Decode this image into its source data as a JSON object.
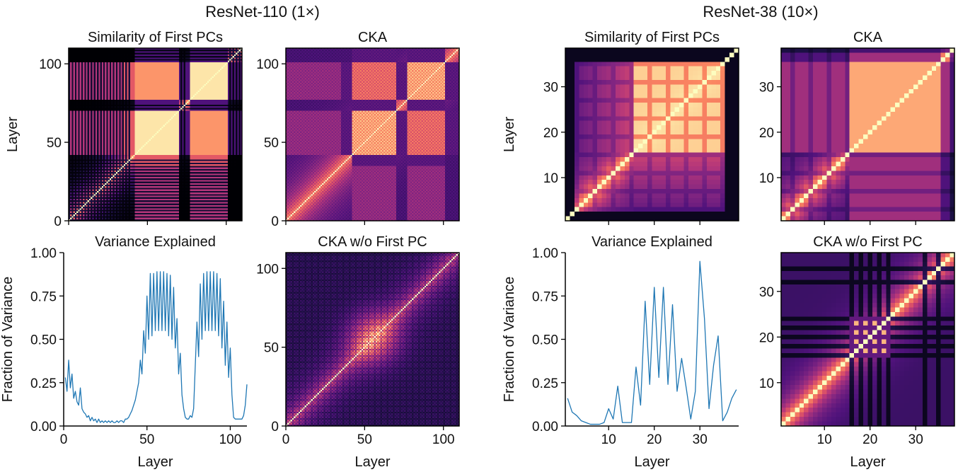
{
  "figure": {
    "group_titles": [
      "ResNet-110 (1×)",
      "ResNet-38 (10×)"
    ]
  },
  "colormap": {
    "name": "magma-like",
    "stops": [
      "#000004",
      "#1c1044",
      "#4f127b",
      "#812581",
      "#b5367a",
      "#e55964",
      "#fb8761",
      "#fec287",
      "#fcfdbf"
    ]
  },
  "line_color": "#1f77b4",
  "chart_data": [
    {
      "id": "r110-first-pc",
      "type": "heatmap",
      "title": "Similarity of First PCs",
      "xlabel": "",
      "ylabel": "Layer",
      "n": 110,
      "xlim": [
        0,
        110
      ],
      "ylim": [
        0,
        110
      ],
      "xticks": [
        0,
        50,
        100
      ],
      "yticks": [
        0,
        50,
        100
      ],
      "show_xticklabels": false,
      "model": "first_pc_110"
    },
    {
      "id": "r110-cka",
      "type": "heatmap",
      "title": "CKA",
      "xlabel": "",
      "ylabel": "",
      "n": 110,
      "xlim": [
        0,
        110
      ],
      "ylim": [
        0,
        110
      ],
      "xticks": [
        0,
        50,
        100
      ],
      "yticks": [
        0,
        50,
        100
      ],
      "show_xticklabels": false,
      "model": "cka_110"
    },
    {
      "id": "r38-first-pc",
      "type": "heatmap",
      "title": "Similarity of First PCs",
      "xlabel": "",
      "ylabel": "Layer",
      "n": 38,
      "xlim": [
        0.5,
        38.5
      ],
      "ylim": [
        0.5,
        38.5
      ],
      "xticks": [
        10,
        20,
        30
      ],
      "yticks": [
        10,
        20,
        30
      ],
      "show_xticklabels": false,
      "model": "first_pc_38"
    },
    {
      "id": "r38-cka",
      "type": "heatmap",
      "title": "CKA",
      "xlabel": "",
      "ylabel": "",
      "n": 38,
      "xlim": [
        0.5,
        38.5
      ],
      "ylim": [
        0.5,
        38.5
      ],
      "xticks": [
        10,
        20,
        30
      ],
      "yticks": [
        10,
        20,
        30
      ],
      "show_xticklabels": false,
      "model": "cka_38"
    },
    {
      "id": "r110-variance",
      "type": "line",
      "title": "Variance Explained",
      "xlabel": "Layer",
      "ylabel": "Fraction of Variance",
      "xlim": [
        0,
        110
      ],
      "ylim": [
        0,
        1.0
      ],
      "xticks": [
        0,
        50,
        100
      ],
      "yticks": [
        0.0,
        0.25,
        0.5,
        0.75,
        1.0
      ],
      "ytick_labels": [
        "0.00",
        "0.25",
        "0.50",
        "0.75",
        "1.00"
      ],
      "x": [
        1,
        2,
        3,
        4,
        5,
        6,
        7,
        8,
        9,
        10,
        11,
        12,
        13,
        14,
        15,
        16,
        17,
        18,
        19,
        20,
        21,
        22,
        23,
        24,
        25,
        26,
        27,
        28,
        29,
        30,
        31,
        32,
        33,
        34,
        35,
        36,
        37,
        38,
        39,
        40,
        41,
        42,
        43,
        44,
        45,
        46,
        47,
        48,
        49,
        50,
        51,
        52,
        53,
        54,
        55,
        56,
        57,
        58,
        59,
        60,
        61,
        62,
        63,
        64,
        65,
        66,
        67,
        68,
        69,
        70,
        71,
        72,
        73,
        74,
        75,
        76,
        77,
        78,
        79,
        80,
        81,
        82,
        83,
        84,
        85,
        86,
        87,
        88,
        89,
        90,
        91,
        92,
        93,
        94,
        95,
        96,
        97,
        98,
        99,
        100,
        101,
        102,
        103,
        104,
        105,
        106,
        107,
        108,
        109,
        110
      ],
      "y": [
        0.28,
        0.2,
        0.38,
        0.22,
        0.3,
        0.16,
        0.2,
        0.14,
        0.12,
        0.22,
        0.1,
        0.08,
        0.07,
        0.05,
        0.06,
        0.03,
        0.05,
        0.03,
        0.04,
        0.02,
        0.04,
        0.02,
        0.03,
        0.02,
        0.03,
        0.02,
        0.03,
        0.02,
        0.03,
        0.02,
        0.02,
        0.03,
        0.02,
        0.03,
        0.03,
        0.02,
        0.04,
        0.04,
        0.05,
        0.07,
        0.09,
        0.12,
        0.15,
        0.2,
        0.25,
        0.38,
        0.3,
        0.55,
        0.42,
        0.75,
        0.5,
        0.88,
        0.52,
        0.88,
        0.55,
        0.89,
        0.55,
        0.89,
        0.55,
        0.89,
        0.55,
        0.88,
        0.52,
        0.87,
        0.5,
        0.8,
        0.45,
        0.62,
        0.3,
        0.42,
        0.18,
        0.1,
        0.05,
        0.04,
        0.04,
        0.06,
        0.05,
        0.1,
        0.35,
        0.6,
        0.4,
        0.82,
        0.5,
        0.88,
        0.55,
        0.89,
        0.55,
        0.89,
        0.55,
        0.89,
        0.55,
        0.88,
        0.52,
        0.85,
        0.45,
        0.72,
        0.35,
        0.6,
        0.28,
        0.45,
        0.18,
        0.05,
        0.04,
        0.04,
        0.04,
        0.04,
        0.04,
        0.06,
        0.12,
        0.24
      ]
    },
    {
      "id": "r110-cka-wo",
      "type": "heatmap",
      "title": "CKA w/o First PC",
      "xlabel": "Layer",
      "ylabel": "",
      "n": 110,
      "xlim": [
        0,
        110
      ],
      "ylim": [
        0,
        110
      ],
      "xticks": [
        0,
        50,
        100
      ],
      "yticks": [
        0,
        50,
        100
      ],
      "show_xticklabels": true,
      "model": "cka_wo_110"
    },
    {
      "id": "r38-variance",
      "type": "line",
      "title": "Variance Explained",
      "xlabel": "Layer",
      "ylabel": "Fraction of Variance",
      "xlim": [
        0.5,
        38.5
      ],
      "ylim": [
        0,
        1.0
      ],
      "xticks": [
        10,
        20,
        30
      ],
      "yticks": [
        0.0,
        0.25,
        0.5,
        0.75,
        1.0
      ],
      "ytick_labels": [
        "0.00",
        "0.25",
        "0.50",
        "0.75",
        "1.00"
      ],
      "x": [
        1,
        2,
        3,
        4,
        5,
        6,
        7,
        8,
        9,
        10,
        11,
        12,
        13,
        14,
        15,
        16,
        17,
        18,
        19,
        20,
        21,
        22,
        23,
        24,
        25,
        26,
        27,
        28,
        29,
        30,
        31,
        32,
        33,
        34,
        35,
        36,
        37,
        38
      ],
      "y": [
        0.16,
        0.08,
        0.06,
        0.03,
        0.02,
        0.01,
        0.01,
        0.01,
        0.02,
        0.1,
        0.04,
        0.23,
        0.02,
        0.02,
        0.02,
        0.34,
        0.12,
        0.72,
        0.24,
        0.8,
        0.28,
        0.8,
        0.24,
        0.7,
        0.2,
        0.39,
        0.22,
        0.04,
        0.2,
        0.95,
        0.62,
        0.1,
        0.35,
        0.52,
        0.03,
        0.08,
        0.16,
        0.21
      ]
    },
    {
      "id": "r38-cka-wo",
      "type": "heatmap",
      "title": "CKA w/o First PC",
      "xlabel": "Layer",
      "ylabel": "",
      "n": 38,
      "xlim": [
        0.5,
        38.5
      ],
      "ylim": [
        0.5,
        38.5
      ],
      "xticks": [
        10,
        20,
        30
      ],
      "yticks": [
        10,
        20,
        30
      ],
      "show_xticklabels": true,
      "model": "cka_wo_38"
    }
  ]
}
